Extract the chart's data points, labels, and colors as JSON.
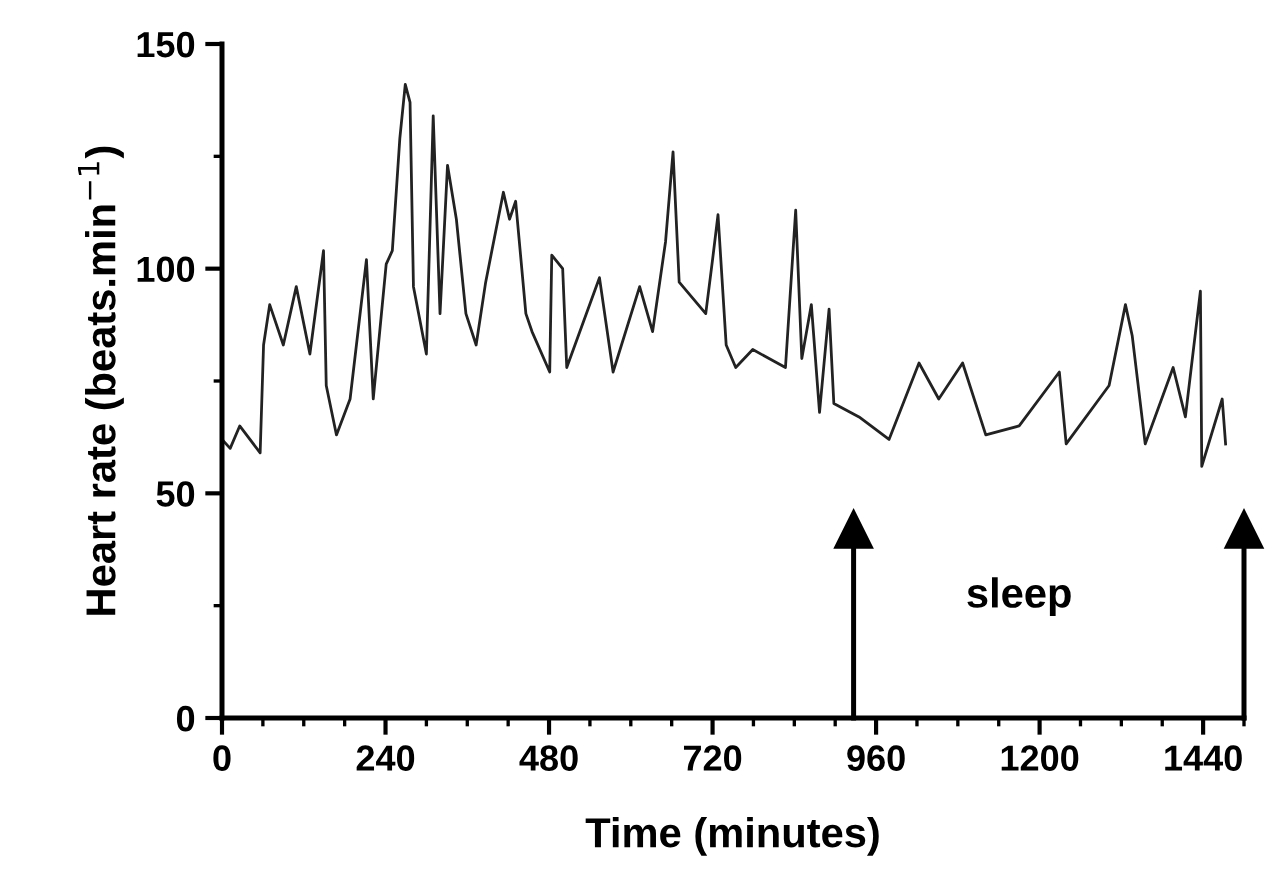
{
  "chart_data": {
    "type": "line",
    "xlabel": "Time (minutes)",
    "ylabel": "Heart rate (beats.min$^{−1}$)",
    "x": [
      0,
      12,
      26,
      56,
      61,
      70,
      90,
      109,
      129,
      149,
      153,
      168,
      188,
      212,
      222,
      241,
      250,
      261,
      269,
      276,
      281,
      300,
      310,
      320,
      331,
      344,
      358,
      373,
      387,
      413,
      422,
      431,
      446,
      455,
      481,
      484,
      500,
      506,
      554,
      574,
      613,
      632,
      651,
      662,
      671,
      710,
      720,
      728,
      740,
      754,
      779,
      827,
      842,
      851,
      865,
      877,
      891,
      898,
      935,
      979,
      1023,
      1052,
      1087,
      1121,
      1170,
      1229,
      1239,
      1302,
      1326,
      1336,
      1355,
      1396,
      1414,
      1436,
      1438,
      1468,
      1473
    ],
    "series": [
      {
        "color": "#222222",
        "values": [
          62,
          60,
          65,
          59,
          83,
          92,
          83,
          96,
          81,
          104,
          74,
          63,
          71,
          102,
          71,
          101,
          104,
          129,
          141,
          137,
          96,
          81,
          134,
          90,
          123,
          111,
          90,
          83,
          97,
          117,
          111,
          115,
          90,
          86,
          77,
          103,
          100,
          78,
          98,
          77,
          96,
          86,
          106,
          126,
          97,
          90,
          102,
          112,
          83,
          78,
          82,
          78,
          113,
          80,
          92,
          68,
          91,
          70,
          67,
          62,
          79,
          71,
          79,
          63,
          65,
          77,
          61,
          74,
          92,
          85,
          61,
          78,
          67,
          95,
          56,
          71,
          61
        ]
      }
    ],
    "xlim": [
      0,
      1500
    ],
    "ylim": [
      0,
      150
    ],
    "xticks": [
      0,
      240,
      480,
      720,
      960,
      1200,
      1440
    ],
    "yticks": [
      0,
      50,
      100,
      150
    ],
    "grid": false,
    "legend": false,
    "marker": "none",
    "line_style": "solid",
    "ref_lines": [
      {
        "axis": "x",
        "value": 927,
        "label": null
      },
      {
        "axis": "x",
        "value": 1500,
        "label": null
      }
    ],
    "annotations": [
      "sleep"
    ]
  }
}
